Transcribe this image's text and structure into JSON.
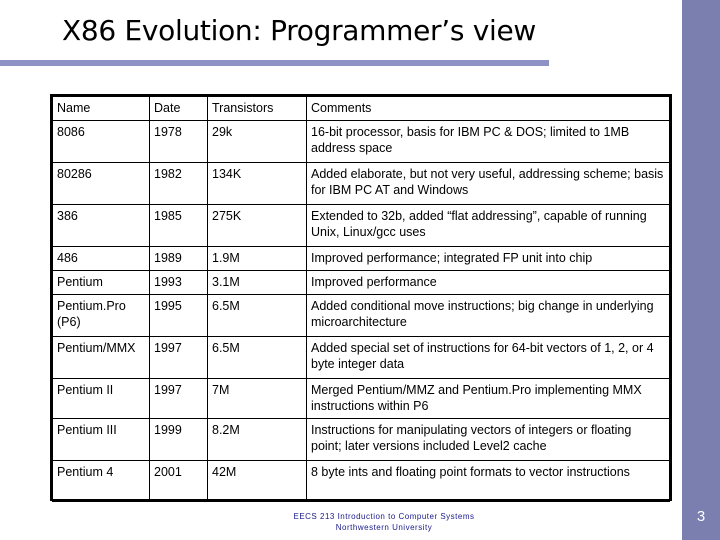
{
  "title": "X86 Evolution: Programmer’s view",
  "table": {
    "headers": [
      "Name",
      "Date",
      "Transistors",
      "Comments"
    ],
    "rows": [
      [
        "8086",
        "1978",
        "29k",
        "16-bit processor, basis for IBM PC & DOS; limited to 1MB address space"
      ],
      [
        "80286",
        "1982",
        "134K",
        "Added elaborate, but not very useful, addressing scheme; basis for IBM PC AT and Windows"
      ],
      [
        "386",
        "1985",
        "275K",
        "Extended to 32b, added “flat addressing”, capable of running Unix, Linux/gcc uses"
      ],
      [
        "486",
        "1989",
        "1.9M",
        "Improved performance; integrated FP unit into chip"
      ],
      [
        "Pentium",
        "1993",
        "3.1M",
        "Improved performance"
      ],
      [
        "Pentium.Pro (P6)",
        "1995",
        "6.5M",
        "Added conditional move instructions; big change in underlying microarchitecture"
      ],
      [
        "Pentium/MMX",
        "1997",
        "6.5M",
        "Added special set of instructions for 64-bit vectors of 1, 2, or 4 byte integer data"
      ],
      [
        "Pentium II",
        "1997",
        "7M",
        "Merged Pentium/MMZ and Pentium.Pro implementing MMX instructions within P6"
      ],
      [
        "Pentium III",
        "1999",
        "8.2M",
        "Instructions for manipulating vectors of integers or floating point; later versions included Level2 cache"
      ],
      [
        "Pentium 4",
        "2001",
        "42M",
        "8 byte ints and floating point formats to vector instructions"
      ]
    ]
  },
  "footer": {
    "line1": "EECS 213 Introduction to Computer Systems",
    "line2": "Northwestern University"
  },
  "page_number": "3",
  "colors": {
    "sidebar": "#7b7fb0",
    "title_underline": "#8e92c4",
    "footer_text": "#1a1a8a"
  }
}
